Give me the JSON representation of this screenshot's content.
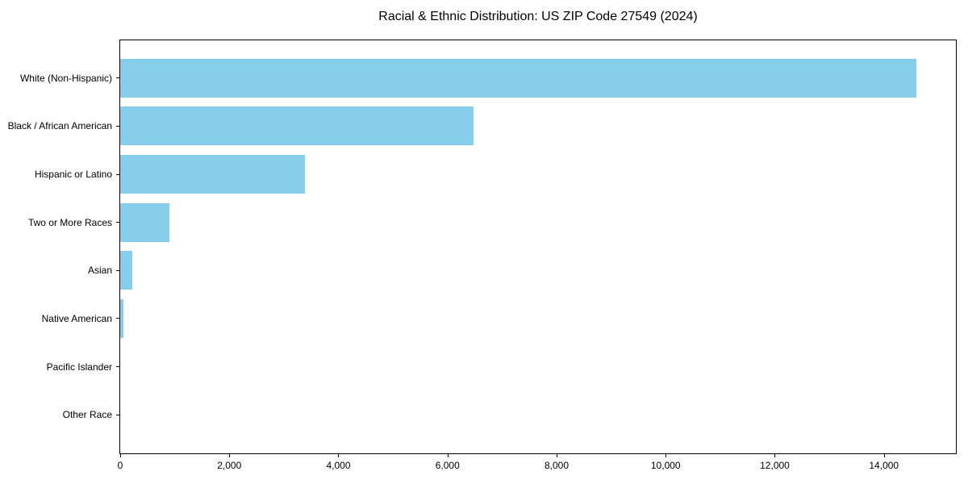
{
  "chart_data": {
    "type": "bar",
    "orientation": "horizontal",
    "title": "Racial & Ethnic Distribution: US ZIP Code 27549 (2024)",
    "categories": [
      "White (Non-Hispanic)",
      "Black / African American",
      "Hispanic or Latino",
      "Two or More Races",
      "Asian",
      "Native American",
      "Pacific Islander",
      "Other Race"
    ],
    "values": [
      14590,
      6480,
      3380,
      900,
      220,
      60,
      0,
      0
    ],
    "xlabel": "",
    "ylabel": "",
    "xlim": [
      0,
      15320
    ],
    "xticks": [
      0,
      2000,
      4000,
      6000,
      8000,
      10000,
      12000,
      14000
    ],
    "xtick_labels": [
      "0",
      "2,000",
      "4,000",
      "6,000",
      "8,000",
      "10,000",
      "12,000",
      "14,000"
    ],
    "grid": false,
    "legend": null,
    "bar_color": "#87CEEB"
  },
  "colors": {
    "background": "#ffffff",
    "bar": "#87CEEB",
    "spine": "#000000",
    "text": "#000000"
  }
}
